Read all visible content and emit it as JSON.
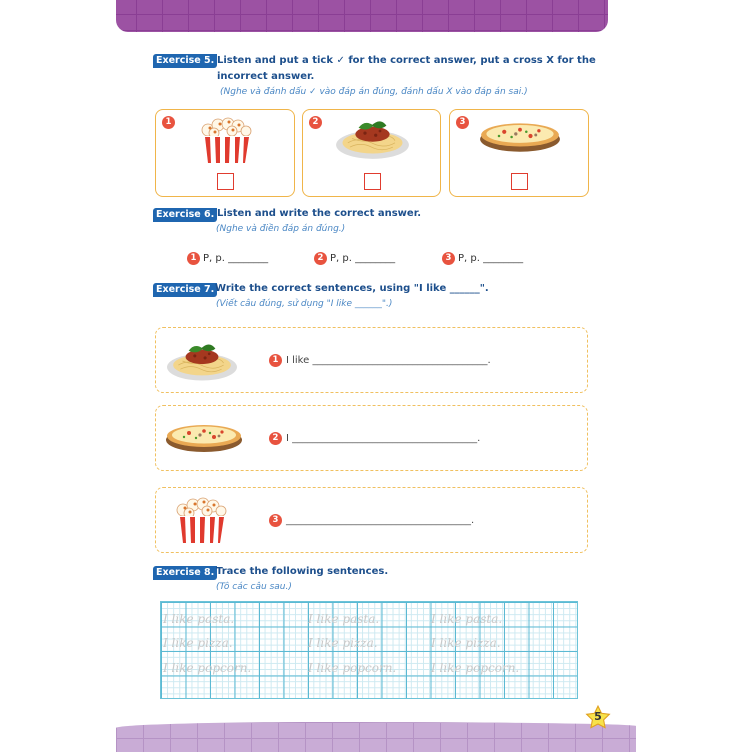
{
  "page_number": "5",
  "exercise5": {
    "badge": "Exercise 5.",
    "title": "Listen and put a tick ✓ for the correct answer, put a cross X for the",
    "title2": "incorrect answer.",
    "subtitle": "(Nghe và đánh dấu ✓ vào đáp án đúng, đánh dấu X vào đáp án sai.)",
    "items": [
      {
        "num": "1",
        "image": "popcorn"
      },
      {
        "num": "2",
        "image": "pasta"
      },
      {
        "num": "3",
        "image": "pizza"
      }
    ]
  },
  "exercise6": {
    "badge": "Exercise 6.",
    "title": "Listen and write the correct answer.",
    "subtitle": "(Nghe và điền đáp án đúng.)",
    "items": [
      {
        "num": "1",
        "text": "P, p. ________"
      },
      {
        "num": "2",
        "text": "P, p. ________"
      },
      {
        "num": "3",
        "text": "P, p. ________"
      }
    ]
  },
  "exercise7": {
    "badge": "Exercise 7.",
    "title": "Write the correct sentences, using \"I like ______\".",
    "subtitle": "(Viết câu đúng, sử dụng \"I like ______\".)",
    "items": [
      {
        "num": "1",
        "image": "pasta",
        "text": "I like ___________________________________."
      },
      {
        "num": "2",
        "image": "pizza",
        "text": "I _____________________________________."
      },
      {
        "num": "3",
        "image": "popcorn",
        "text": "_____________________________________."
      }
    ]
  },
  "exercise8": {
    "badge": "Exercise 8.",
    "title": "Trace the following sentences.",
    "subtitle": "(Tô các câu sau.)",
    "lines": [
      "I like pasta.",
      "I like pizza.",
      "I like popcorn."
    ]
  }
}
